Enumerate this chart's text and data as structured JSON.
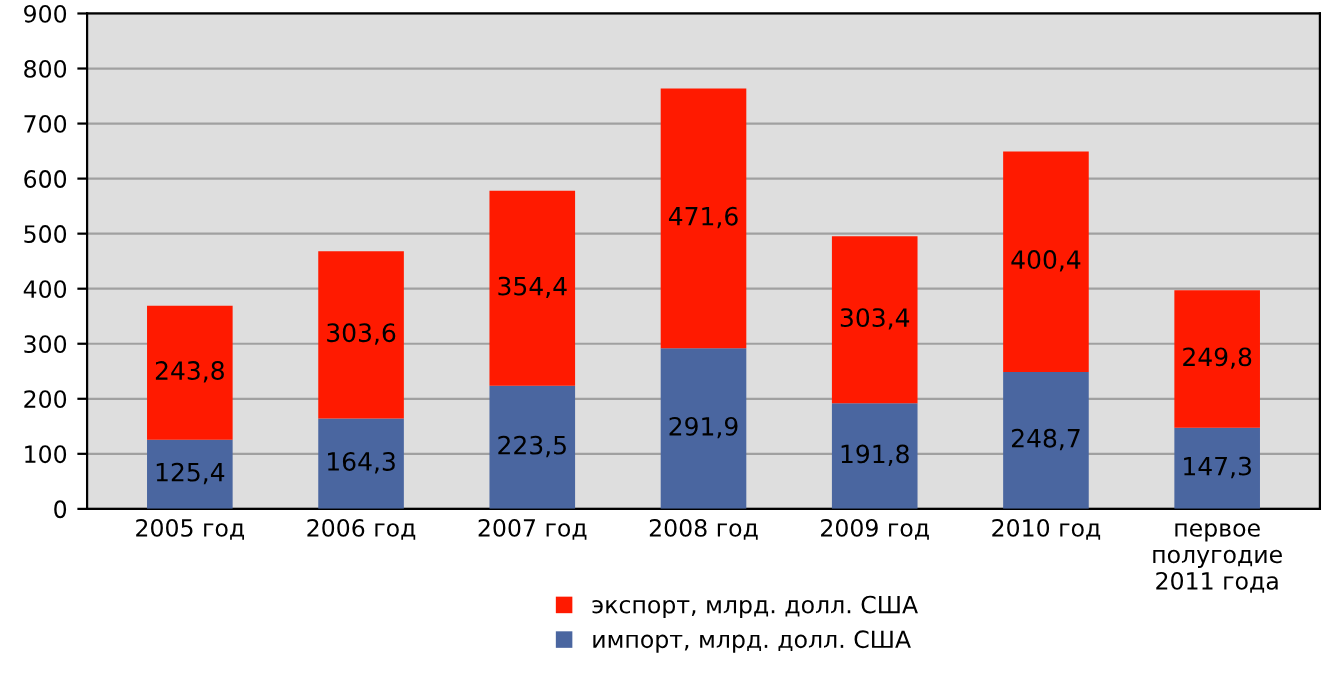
{
  "chart_data": {
    "type": "bar",
    "stacked": true,
    "categories": [
      "2005 год",
      "2006 год",
      "2007 год",
      "2008 год",
      "2009 год",
      "2010 год",
      "первое\nполугодие\n2011 года"
    ],
    "series": [
      {
        "name": "импорт, млрд. долл. США",
        "color": "#4a66a0",
        "values": [
          125.4,
          164.3,
          223.5,
          291.9,
          191.8,
          248.7,
          147.3
        ],
        "value_labels": [
          "125,4",
          "164,3",
          "223,5",
          "291,9",
          "191,8",
          "248,7",
          "147,3"
        ]
      },
      {
        "name": "экспорт, млрд. долл. США",
        "color": "#ff1a00",
        "values": [
          243.8,
          303.6,
          354.4,
          471.6,
          303.4,
          400.4,
          249.8
        ],
        "value_labels": [
          "243,8",
          "303,6",
          "354,4",
          "471,6",
          "303,4",
          "400,4",
          "249,8"
        ]
      }
    ],
    "ylim": [
      0,
      900
    ],
    "yticks": [
      0,
      100,
      200,
      300,
      400,
      500,
      600,
      700,
      800,
      900
    ],
    "grid": "y",
    "legend": "bottom"
  }
}
